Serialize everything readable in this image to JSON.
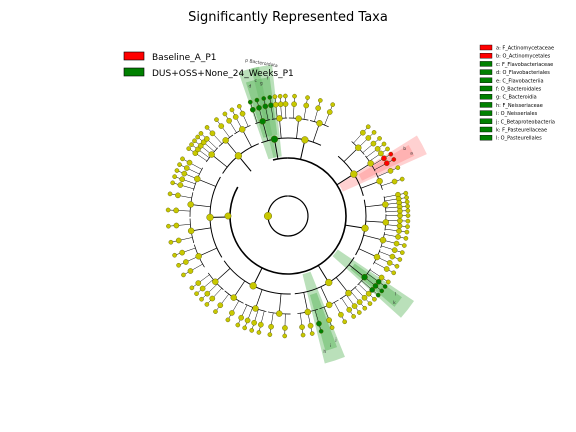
{
  "title": "Significantly Represented Taxa",
  "colors": {
    "baseline": "#ff0000",
    "dus": "#008000",
    "node_default": "#c8c800",
    "node_stroke": "#555500",
    "shade_red": "#ff9999",
    "shade_green": "#66bb66",
    "edge": "#000000"
  },
  "legend_main": [
    {
      "label": "Baseline_A_P1",
      "color": "#ff0000"
    },
    {
      "label": "DUS+OSS+None_24_Weeks_P1",
      "color": "#008000"
    }
  ],
  "legend_clades": [
    {
      "label": "a: F_Actinomycetaceae",
      "color": "#ff0000"
    },
    {
      "label": "b: O_Actinomycetales",
      "color": "#ff0000"
    },
    {
      "label": "c: F_Flavobacteriaceae",
      "color": "#008000"
    },
    {
      "label": "d: O_Flavobacteriales",
      "color": "#008000"
    },
    {
      "label": "e: C_Flavobacteriia",
      "color": "#008000"
    },
    {
      "label": "f: O_Bacteroidales",
      "color": "#008000"
    },
    {
      "label": "g: C_Bacteroidia",
      "color": "#008000"
    },
    {
      "label": "h: F_Neisseriaceae",
      "color": "#008000"
    },
    {
      "label": "i: O_Neisseriales",
      "color": "#008000"
    },
    {
      "label": "j: C_Betaproteobacteria",
      "color": "#008000"
    },
    {
      "label": "k: F_Pasteurellaceae",
      "color": "#008000"
    },
    {
      "label": "l: O_Pasteurellales",
      "color": "#008000"
    }
  ],
  "tree": {
    "highlighted": [
      {
        "group": "baseline",
        "angle": 62,
        "letters": [
          "b",
          "a"
        ],
        "tag": ""
      },
      {
        "group": "dus",
        "angle": 345,
        "letters": [
          "d",
          "c"
        ],
        "tag": ""
      },
      {
        "group": "dus",
        "angle": 350,
        "letters": [
          "g",
          "f"
        ],
        "tag": "p Bacteroidota"
      },
      {
        "group": "dus",
        "angle": 162,
        "letters": [
          "j",
          "i",
          "h"
        ],
        "tag": ""
      },
      {
        "group": "dus",
        "angle": 128,
        "letters": [
          "l",
          "k"
        ],
        "tag": ""
      }
    ]
  }
}
